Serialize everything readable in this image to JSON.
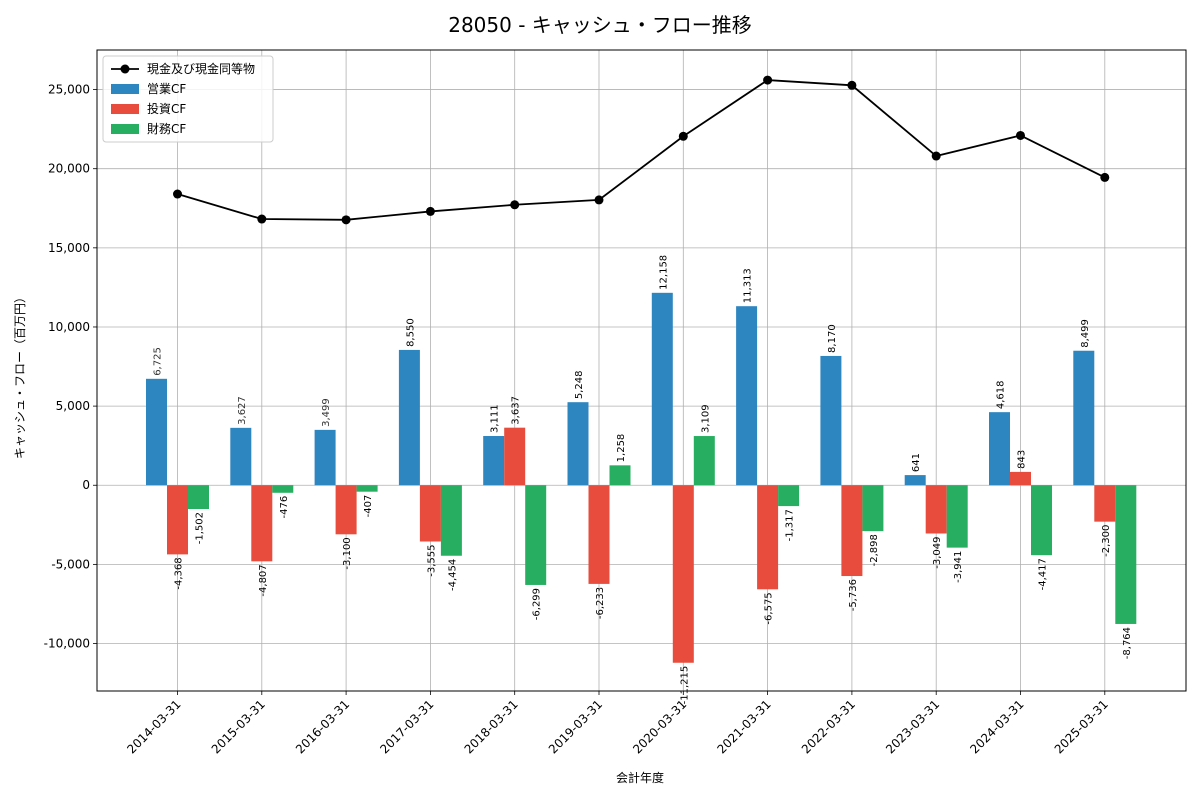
{
  "chart_data": {
    "type": "bar",
    "title": "28050 - キャッシュ・フロー推移",
    "xlabel": "会計年度",
    "ylabel": "キャッシュ・フロー（百万円）",
    "ylim": [
      -13000,
      27500
    ],
    "yticks": [
      -10000,
      -5000,
      0,
      5000,
      10000,
      15000,
      20000,
      25000
    ],
    "ytick_labels": [
      "-10,000",
      "-5,000",
      "0",
      "5,000",
      "10,000",
      "15,000",
      "20,000",
      "25,000"
    ],
    "grid": true,
    "legend_position": "top-left",
    "categories": [
      "2014-03-31",
      "2015-03-31",
      "2016-03-31",
      "2017-03-31",
      "2018-03-31",
      "2019-03-31",
      "2020-03-31",
      "2021-03-31",
      "2022-03-31",
      "2023-03-31",
      "2024-03-31",
      "2025-03-31"
    ],
    "series": [
      {
        "name": "営業CF",
        "kind": "bar",
        "color": "#2e86c1",
        "values": [
          6725,
          3627,
          3499,
          8550,
          3111,
          5248,
          12158,
          11313,
          8170,
          641,
          4618,
          8499
        ],
        "labels": [
          "6,725",
          "3,627",
          "3,499",
          "8,550",
          "3,111",
          "5,248",
          "12,158",
          "11,313",
          "8,170",
          "641",
          "4,618",
          "8,499"
        ]
      },
      {
        "name": "投資CF",
        "kind": "bar",
        "color": "#e74c3c",
        "values": [
          -4368,
          -4807,
          -3100,
          -3555,
          3637,
          -6233,
          -11215,
          -6575,
          -5736,
          -3049,
          843,
          -2300
        ],
        "labels": [
          "-4,368",
          "-4,807",
          "-3,100",
          "-3,555",
          "3,637",
          "-6,233",
          "-11,215",
          "-6,575",
          "-5,736",
          "-3,049",
          "843",
          "-2,300"
        ]
      },
      {
        "name": "財務CF",
        "kind": "bar",
        "color": "#27ae60",
        "values": [
          -1502,
          -476,
          -407,
          -4454,
          -6299,
          1258,
          3109,
          -1317,
          -2898,
          -3941,
          -4417,
          -8764
        ],
        "labels": [
          "-1,502",
          "-476",
          "-407",
          "-4,454",
          "-6,299",
          "1,258",
          "3,109",
          "-1,317",
          "-2,898",
          "-3,941",
          "-4,417",
          "-8,764"
        ]
      },
      {
        "name": "現金及び現金同等物",
        "kind": "line",
        "color": "#000000",
        "values": [
          18400,
          16820,
          16770,
          17300,
          17720,
          18030,
          22050,
          25600,
          25270,
          20800,
          22100,
          19450
        ]
      }
    ]
  }
}
